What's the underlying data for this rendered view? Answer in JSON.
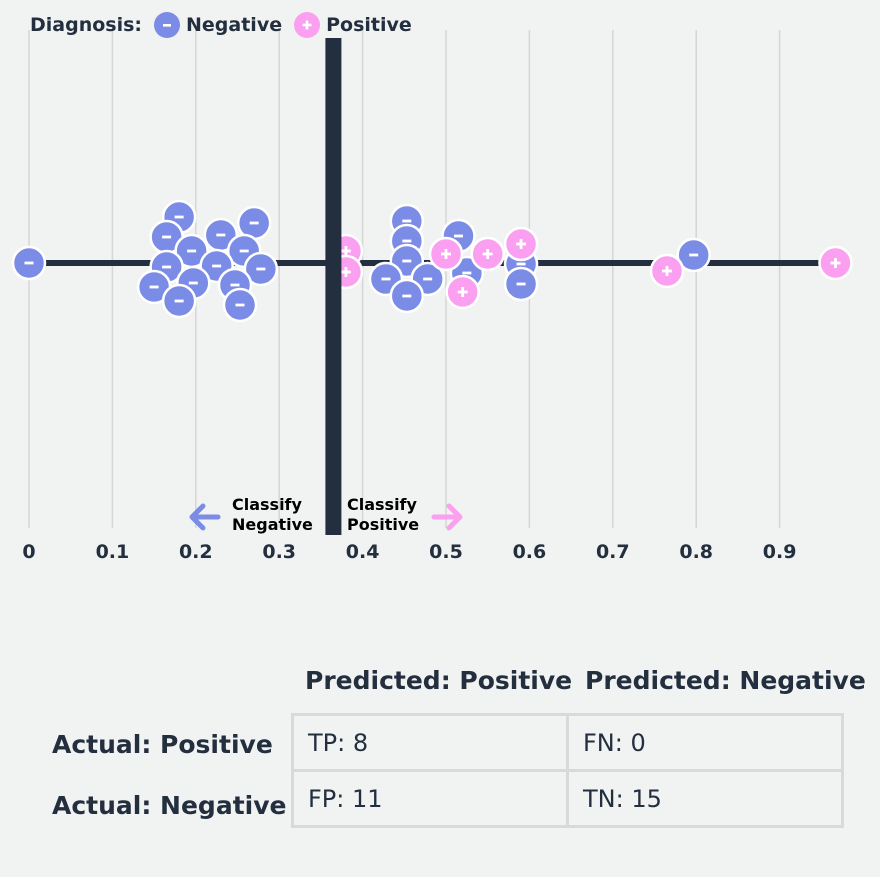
{
  "legend": {
    "title": "Diagnosis:",
    "negative_label": "Negative",
    "positive_label": "Positive"
  },
  "colors": {
    "negative": "#7b8ce6",
    "positive": "#fb9ff0",
    "axis": "#232f3e",
    "grid": "#d5d6d6",
    "background": "#f1f2f2"
  },
  "chart_data": {
    "type": "scatter",
    "title": "",
    "xlabel": "",
    "ylabel": "",
    "xlim": [
      0,
      0.97
    ],
    "x_ticks": [
      0,
      0.1,
      0.2,
      0.3,
      0.4,
      0.5,
      0.6,
      0.7,
      0.8,
      0.9
    ],
    "grid": true,
    "threshold": 0.365,
    "annotations": {
      "left": [
        "Classify",
        "Negative"
      ],
      "right": [
        "Classify",
        "Positive"
      ]
    },
    "series": [
      {
        "name": "Negative",
        "marker": "-",
        "points": [
          {
            "x": 0.0,
            "y": 0
          },
          {
            "x": 0.18,
            "y": 2.3
          },
          {
            "x": 0.27,
            "y": 2.0
          },
          {
            "x": 0.165,
            "y": 1.3
          },
          {
            "x": 0.23,
            "y": 1.4
          },
          {
            "x": 0.195,
            "y": 0.6
          },
          {
            "x": 0.258,
            "y": 0.6
          },
          {
            "x": 0.165,
            "y": -0.2
          },
          {
            "x": 0.225,
            "y": -0.15
          },
          {
            "x": 0.278,
            "y": -0.3
          },
          {
            "x": 0.15,
            "y": -1.2
          },
          {
            "x": 0.197,
            "y": -1.0
          },
          {
            "x": 0.247,
            "y": -1.1
          },
          {
            "x": 0.18,
            "y": -1.9
          },
          {
            "x": 0.253,
            "y": -2.1
          },
          {
            "x": 0.453,
            "y": 2.1
          },
          {
            "x": 0.515,
            "y": 1.35
          },
          {
            "x": 0.453,
            "y": 1.1
          },
          {
            "x": 0.453,
            "y": 0.1
          },
          {
            "x": 0.59,
            "y": -0.05
          },
          {
            "x": 0.525,
            "y": -0.5
          },
          {
            "x": 0.428,
            "y": -0.8
          },
          {
            "x": 0.478,
            "y": -0.8
          },
          {
            "x": 0.59,
            "y": -1.05
          },
          {
            "x": 0.453,
            "y": -1.65
          },
          {
            "x": 0.797,
            "y": 0.4
          }
        ]
      },
      {
        "name": "Positive",
        "marker": "+",
        "points": [
          {
            "x": 0.38,
            "y": 0.6
          },
          {
            "x": 0.38,
            "y": -0.45
          },
          {
            "x": 0.5,
            "y": 0.45
          },
          {
            "x": 0.55,
            "y": 0.45
          },
          {
            "x": 0.59,
            "y": 0.95
          },
          {
            "x": 0.52,
            "y": -1.45
          },
          {
            "x": 0.765,
            "y": -0.4
          },
          {
            "x": 0.967,
            "y": 0
          }
        ]
      }
    ]
  },
  "matrix": {
    "col_headers": [
      "Predicted: Positive",
      "Predicted: Negative"
    ],
    "row_headers": [
      "Actual: Positive",
      "Actual: Negative"
    ],
    "cells": [
      [
        "TP: 8",
        "FN: 0"
      ],
      [
        "FP: 11",
        "TN: 15"
      ]
    ]
  }
}
